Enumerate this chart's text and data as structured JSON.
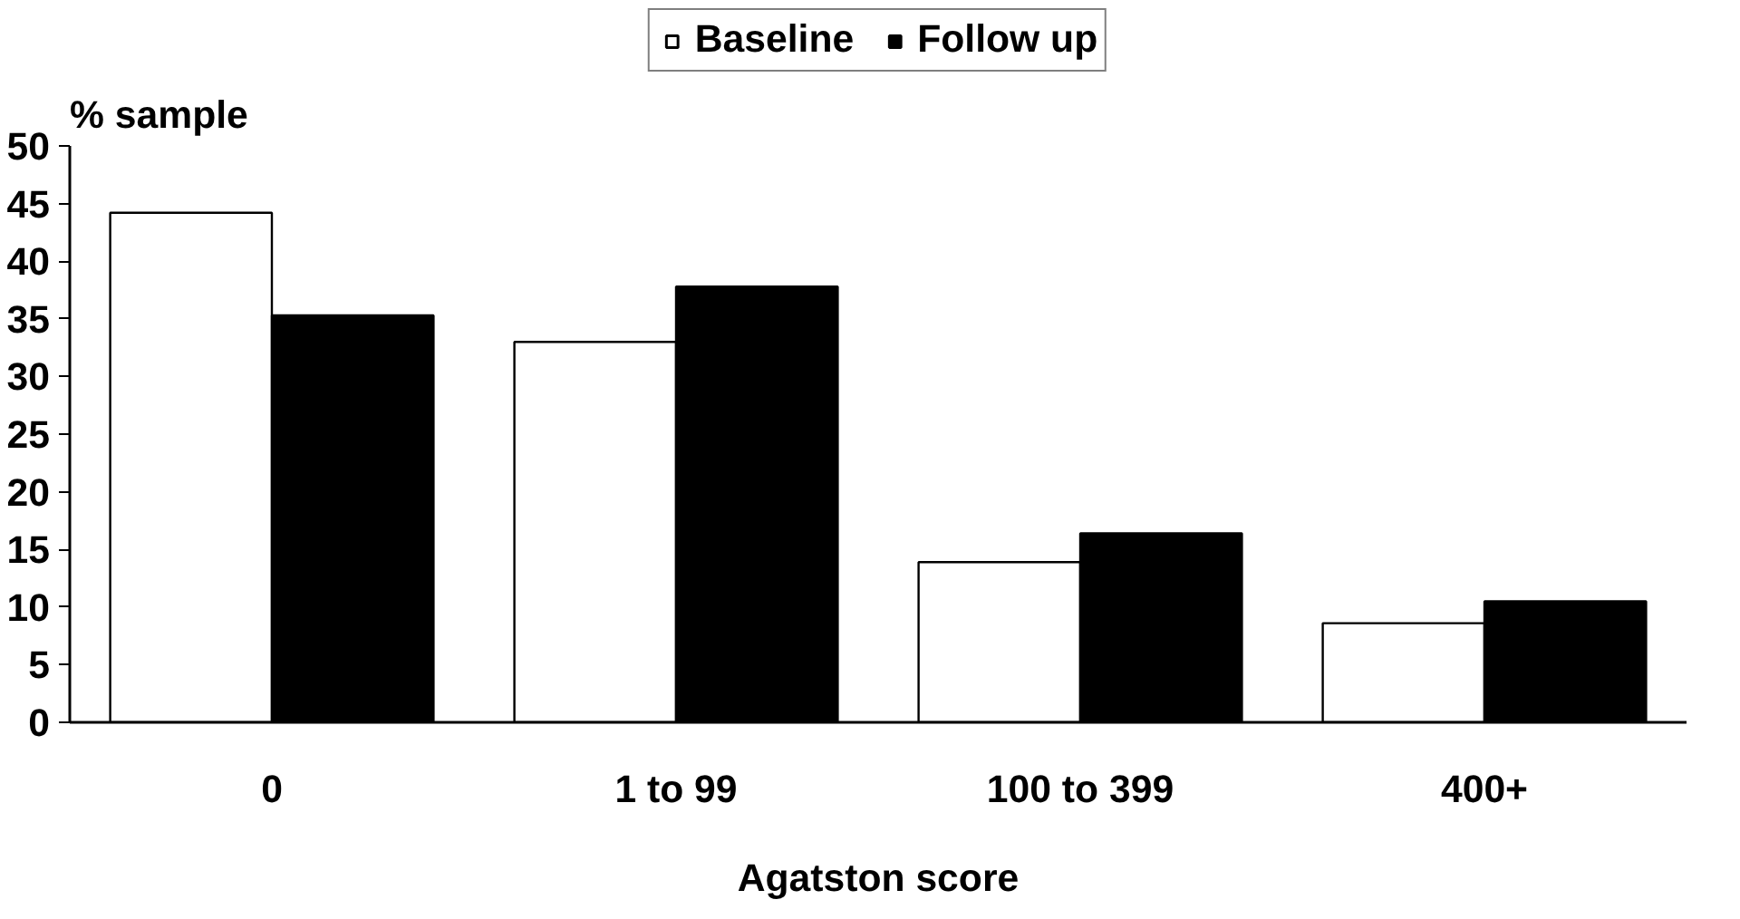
{
  "chart_data": {
    "type": "bar",
    "xlabel": "Agatston score",
    "ylabel": "% sample",
    "categories": [
      "0",
      "1 to 99",
      "100 to 399",
      "400+"
    ],
    "series": [
      {
        "name": "Baseline",
        "color": "#ffffff",
        "values": [
          44.2,
          33.0,
          13.9,
          8.6
        ]
      },
      {
        "name": "Follow up",
        "color": "#000000",
        "values": [
          35.3,
          37.8,
          16.4,
          10.5
        ]
      }
    ],
    "ylim": [
      0,
      50
    ],
    "yticks": [
      0,
      5,
      10,
      15,
      20,
      25,
      30,
      35,
      40,
      45,
      50
    ],
    "grid": false,
    "legend": "top"
  }
}
